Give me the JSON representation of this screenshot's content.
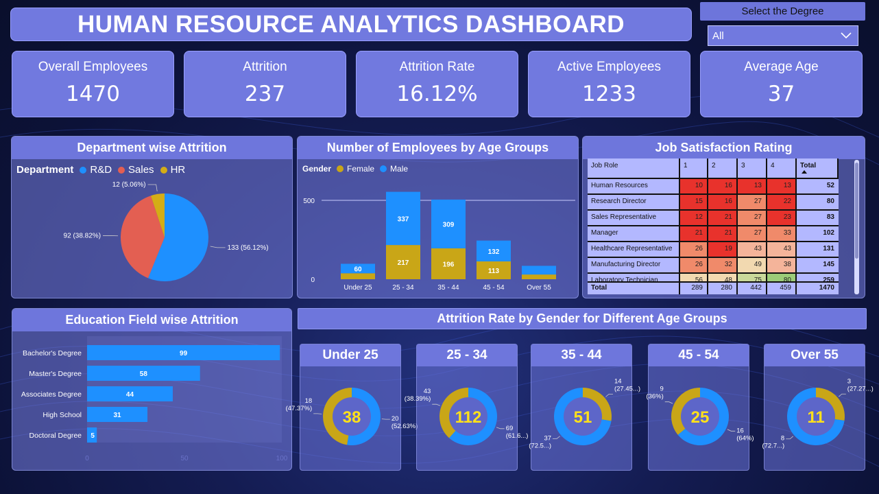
{
  "header": {
    "title": "HUMAN RESOURCE ANALYTICS DASHBOARD"
  },
  "slicer": {
    "title": "Select the Degree",
    "selected": "All"
  },
  "kpis": [
    {
      "label": "Overall Employees",
      "value": "1470"
    },
    {
      "label": "Attrition",
      "value": "237"
    },
    {
      "label": "Attrition Rate",
      "value": "16.12%"
    },
    {
      "label": "Active Employees",
      "value": "1233"
    },
    {
      "label": "Average Age",
      "value": "37"
    }
  ],
  "colors": {
    "rd": "#1e90ff",
    "sales": "#e35f52",
    "hr": "#d4ad16",
    "female": "#c9a617",
    "male": "#1e90ff"
  },
  "chart_data": [
    {
      "type": "pie",
      "title": "Department wise Attrition",
      "legend_title": "Department",
      "legend_position": "top-left",
      "slices": [
        {
          "name": "R&D",
          "value": 133,
          "label": "133 (56.12%)"
        },
        {
          "name": "Sales",
          "value": 92,
          "label": "92 (38.82%)"
        },
        {
          "name": "HR",
          "value": 12,
          "label": "12 (5.06%)"
        }
      ]
    },
    {
      "type": "bar",
      "stacked": true,
      "title": "Number of Employees by Age Groups",
      "legend_title": "Gender",
      "categories": [
        "Under 25",
        "25 - 34",
        "35 - 44",
        "45 - 54",
        "Over 55"
      ],
      "series": [
        {
          "name": "Female",
          "values": [
            38,
            217,
            196,
            113,
            30
          ],
          "labels": [
            "",
            "217",
            "196",
            "113",
            ""
          ]
        },
        {
          "name": "Male",
          "values": [
            60,
            337,
            309,
            132,
            55
          ],
          "labels": [
            "60",
            "337",
            "309",
            "132",
            ""
          ]
        }
      ],
      "yticks": [
        "0",
        "500"
      ],
      "ylim": [
        0,
        650
      ]
    },
    {
      "type": "table",
      "title": "Job Satisfaction Rating",
      "columns": [
        "Job Role",
        "1",
        "2",
        "3",
        "4",
        "Total"
      ],
      "rows": [
        {
          "role": "Human Resources",
          "vals": [
            10,
            16,
            13,
            13
          ],
          "total": "52"
        },
        {
          "role": "Research Director",
          "vals": [
            15,
            16,
            27,
            22
          ],
          "total": "80"
        },
        {
          "role": "Sales Representative",
          "vals": [
            12,
            21,
            27,
            23
          ],
          "total": "83"
        },
        {
          "role": "Manager",
          "vals": [
            21,
            21,
            27,
            33
          ],
          "total": "102"
        },
        {
          "role": "Healthcare Representative",
          "vals": [
            26,
            19,
            43,
            43
          ],
          "total": "131"
        },
        {
          "role": "Manufacturing Director",
          "vals": [
            26,
            32,
            49,
            38
          ],
          "total": "145"
        },
        {
          "role": "Laboratory Technician",
          "vals": [
            56,
            48,
            75,
            80
          ],
          "total": "259"
        }
      ],
      "totals": {
        "label": "Total",
        "vals": [
          "289",
          "280",
          "442",
          "459"
        ],
        "total": "1470"
      }
    },
    {
      "type": "bar",
      "orientation": "horizontal",
      "title": "Education Field wise Attrition",
      "categories": [
        "Bachelor's Degree",
        "Master's Degree",
        "Associates Degree",
        "High School",
        "Doctoral Degree"
      ],
      "values": [
        99,
        58,
        44,
        31,
        5
      ],
      "xticks": [
        "0",
        "50",
        "100"
      ],
      "xlim": [
        0,
        100
      ]
    },
    {
      "type": "pie",
      "donut": true,
      "title": "Attrition Rate by Gender for Different Age Groups",
      "groups": [
        {
          "name": "Under 25",
          "center": "38",
          "slices": [
            {
              "name": "Male",
              "value": 20,
              "label": [
                "20",
                "(52.63%)"
              ]
            },
            {
              "name": "Female",
              "value": 18,
              "label": [
                "18",
                "(47.37%)"
              ]
            }
          ]
        },
        {
          "name": "25 - 34",
          "center": "112",
          "slices": [
            {
              "name": "Male",
              "value": 69,
              "label": [
                "69",
                "(61.6...)"
              ]
            },
            {
              "name": "Female",
              "value": 43,
              "label": [
                "43",
                "(38.39%)"
              ]
            }
          ]
        },
        {
          "name": "35 - 44",
          "center": "51",
          "slices": [
            {
              "name": "Female",
              "value": 14,
              "label": [
                "14",
                "(27.45...)"
              ]
            },
            {
              "name": "Male",
              "value": 37,
              "label": [
                "37",
                "(72.5...)"
              ]
            }
          ]
        },
        {
          "name": "45 - 54",
          "center": "25",
          "slices": [
            {
              "name": "Male",
              "value": 16,
              "label": [
                "16",
                "(64%)"
              ]
            },
            {
              "name": "Female",
              "value": 9,
              "label": [
                "9",
                "(36%)"
              ]
            }
          ]
        },
        {
          "name": "Over 55",
          "center": "11",
          "slices": [
            {
              "name": "Female",
              "value": 3,
              "label": [
                "3",
                "(27.27...)"
              ]
            },
            {
              "name": "Male",
              "value": 8,
              "label": [
                "8",
                "(72.7...)"
              ]
            }
          ]
        }
      ]
    }
  ]
}
